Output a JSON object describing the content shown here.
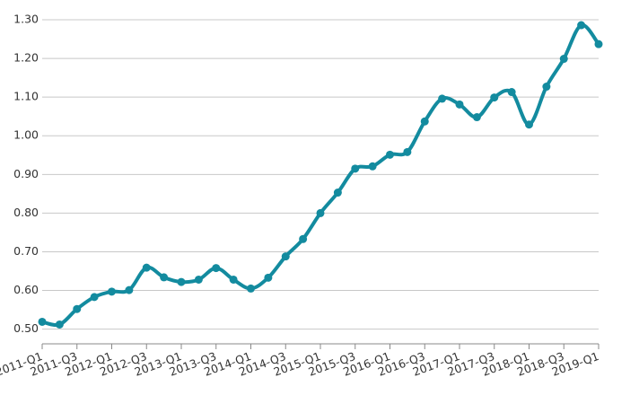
{
  "chart_data": {
    "type": "line",
    "categories": [
      "2011-Q1",
      null,
      "2011-Q3",
      null,
      "2012-Q1",
      null,
      "2012-Q3",
      null,
      "2013-Q1",
      null,
      "2013-Q3",
      null,
      "2014-Q1",
      null,
      "2014-Q3",
      null,
      "2015-Q1",
      null,
      "2015-Q3",
      null,
      "2016-Q1",
      null,
      "2016-Q3",
      null,
      "2017-Q1",
      null,
      "2017-Q3",
      null,
      "2018-Q1",
      null,
      "2018-Q3",
      null,
      "2019-Q1"
    ],
    "series": [
      {
        "color": "#138b9f",
        "values": [
          0.519,
          0.512,
          0.552,
          0.583,
          0.597,
          0.601,
          0.659,
          0.634,
          0.622,
          0.628,
          0.658,
          0.628,
          0.605,
          0.633,
          0.688,
          0.733,
          0.8,
          0.853,
          0.915,
          0.921,
          0.951,
          0.958,
          1.037,
          1.096,
          1.081,
          1.048,
          1.099,
          1.113,
          1.029,
          1.127,
          1.199,
          1.286,
          1.237
        ]
      }
    ],
    "ylim": [
      0.462,
      1.3
    ],
    "yticks": [
      {
        "value": 0.5,
        "label": "0.50"
      },
      {
        "value": 0.6,
        "label": "0.60"
      },
      {
        "value": 0.7,
        "label": "0.70"
      },
      {
        "value": 0.8,
        "label": "0.80"
      },
      {
        "value": 0.9,
        "label": "0.90"
      },
      {
        "value": 1.0,
        "label": "1.00"
      },
      {
        "value": 1.1,
        "label": "1.10"
      },
      {
        "value": 1.2,
        "label": "1.20"
      },
      {
        "value": 1.3,
        "label": "1.30"
      }
    ],
    "grid": true
  }
}
